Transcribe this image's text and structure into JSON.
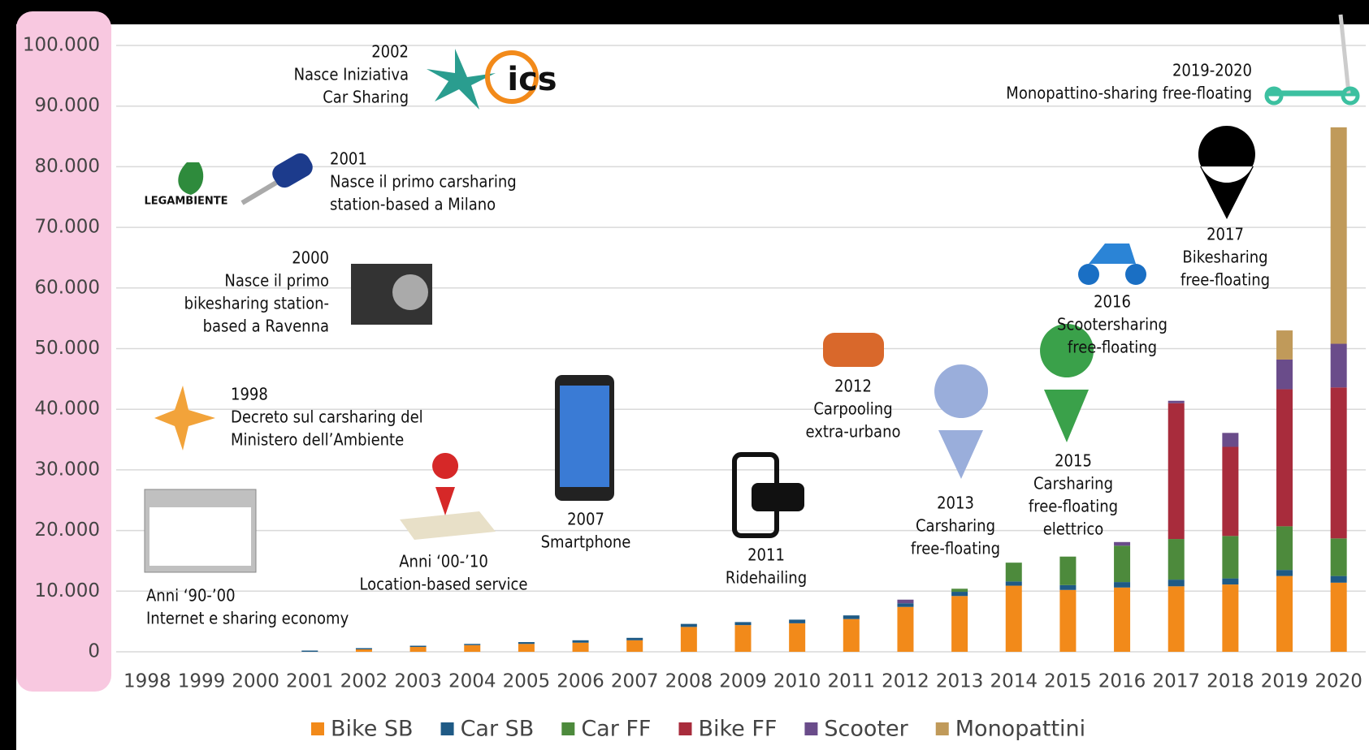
{
  "chart_data": {
    "type": "stacked_bar",
    "categories": [
      "1998",
      "1999",
      "2000",
      "2001",
      "2002",
      "2003",
      "2004",
      "2005",
      "2006",
      "2007",
      "2008",
      "2009",
      "2010",
      "2011",
      "2012",
      "2013",
      "2014",
      "2015",
      "2016",
      "2017",
      "2018",
      "2019",
      "2020"
    ],
    "series": [
      {
        "name": "Bike SB",
        "color": "#f28a1a",
        "values": [
          0,
          0,
          0,
          0,
          400,
          800,
          1100,
          1300,
          1500,
          1900,
          4100,
          4400,
          4700,
          5400,
          7400,
          9200,
          10900,
          10200,
          10600,
          10800,
          11100,
          12500,
          11400
        ]
      },
      {
        "name": "Car SB",
        "color": "#1f5a85",
        "values": [
          0,
          0,
          0,
          200,
          200,
          200,
          200,
          300,
          400,
          400,
          500,
          500,
          600,
          600,
          600,
          700,
          700,
          800,
          900,
          1100,
          1000,
          1000,
          1100
        ]
      },
      {
        "name": "Car FF",
        "color": "#4d8a3c",
        "values": [
          0,
          0,
          0,
          0,
          0,
          0,
          0,
          0,
          0,
          0,
          0,
          0,
          0,
          0,
          0,
          500,
          3100,
          4700,
          6000,
          6700,
          7000,
          7200,
          6200
        ]
      },
      {
        "name": "Bike FF",
        "color": "#a82c3c",
        "values": [
          0,
          0,
          0,
          0,
          0,
          0,
          0,
          0,
          0,
          0,
          0,
          0,
          0,
          0,
          0,
          0,
          0,
          0,
          0,
          22400,
          14700,
          22600,
          24900
        ]
      },
      {
        "name": "Scooter",
        "color": "#6a4c8a",
        "values": [
          0,
          0,
          0,
          0,
          0,
          0,
          0,
          0,
          0,
          0,
          0,
          0,
          0,
          0,
          600,
          0,
          0,
          0,
          600,
          400,
          2300,
          4900,
          7200
        ]
      },
      {
        "name": "Monopattini",
        "color": "#c09a5a",
        "values": [
          0,
          0,
          0,
          0,
          0,
          0,
          0,
          0,
          0,
          0,
          0,
          0,
          0,
          0,
          0,
          0,
          0,
          0,
          0,
          0,
          0,
          4800,
          35700
        ]
      }
    ],
    "ylim": [
      0,
      100000
    ],
    "yticks": [
      0,
      {
        "value": 10000,
        "label": "10.000"
      },
      {
        "value": 20000,
        "label": "20.000"
      },
      {
        "value": 30000,
        "label": "30.000"
      },
      {
        "value": 40000,
        "label": "40.000"
      },
      {
        "value": 50000,
        "label": "50.000"
      },
      {
        "value": 60000,
        "label": "60.000"
      },
      {
        "value": 70000,
        "label": "70.000"
      },
      {
        "value": 80000,
        "label": "80.000"
      },
      {
        "value": 90000,
        "label": "90.000"
      },
      {
        "value": 100000,
        "label": "100.000"
      }
    ],
    "grid": true,
    "legend": "bottom",
    "annotations": [
      [
        "2002",
        "Nasce Iniziativa",
        "Car Sharing"
      ],
      [
        "2001",
        "Nasce il primo carsharing",
        "station-based a Milano"
      ],
      [
        "2000",
        "Nasce il primo",
        "bikesharing station-",
        "based a Ravenna"
      ],
      [
        "1998",
        "Decreto sul carsharing del",
        "Ministero dell’Ambiente"
      ],
      [
        "Anni ‘90-’00",
        "Internet e sharing economy"
      ],
      [
        "Anni ‘00-’10",
        "Location-based service"
      ],
      [
        "2007",
        "Smartphone"
      ],
      [
        "2011",
        "Ridehailing"
      ],
      [
        "2012",
        "Carpooling",
        "extra-urbano"
      ],
      [
        "2013",
        "Carsharing",
        "free-floating"
      ],
      [
        "2015",
        "Carsharing",
        "free-floating",
        "elettrico"
      ],
      [
        "2016",
        "Scootersharing",
        "free-floating"
      ],
      [
        "2017",
        "Bikesharing",
        "free-floating"
      ],
      [
        "2019-2020",
        "Monopattino-sharing free-floating"
      ]
    ],
    "logos": [
      "LEGAMBIENTE",
      "ics"
    ]
  }
}
